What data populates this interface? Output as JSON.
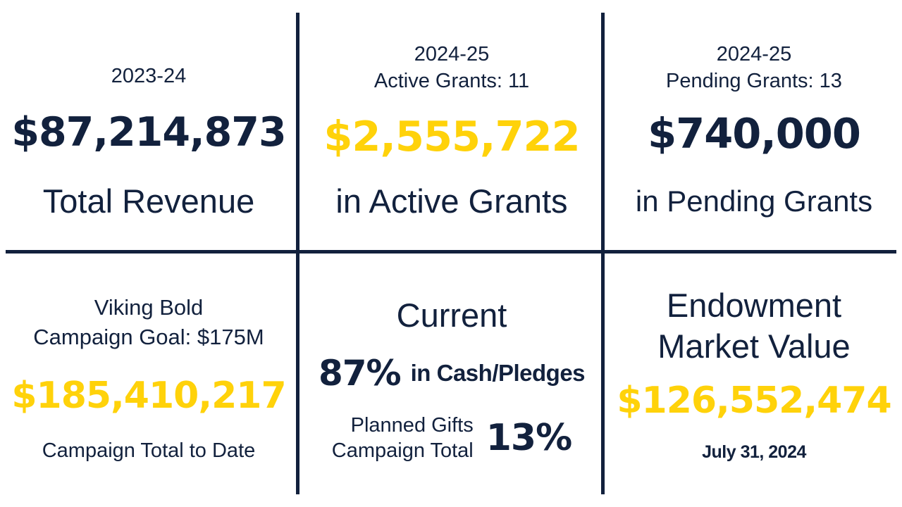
{
  "stats": {
    "revenue": {
      "year": "2023-24",
      "amount": "$87,214,873",
      "label": "Total Revenue"
    },
    "active_grants": {
      "year": "2024-25",
      "count_line": "Active Grants: 11",
      "amount": "$2,555,722",
      "label": "in Active Grants"
    },
    "pending_grants": {
      "year": "2024-25",
      "count_line": "Pending Grants: 13",
      "amount": "$740,000",
      "label": "in Pending Grants"
    },
    "campaign": {
      "name": "Viking Bold",
      "goal_line": "Campaign Goal: $175M",
      "amount": "$185,410,217",
      "label": "Campaign Total to Date"
    },
    "current": {
      "heading": "Current",
      "cash_percent": "87%",
      "cash_label": "in Cash/Pledges",
      "planned_line1": "Planned Gifts",
      "planned_line2": "Campaign Total",
      "planned_percent": "13%"
    },
    "endowment": {
      "heading_line1": "Endowment",
      "heading_line2": "Market Value",
      "amount": "$126,552,474",
      "date": "July 31, 2024"
    }
  },
  "colors": {
    "navy": "#12213d",
    "gold": "#ffd20a"
  }
}
